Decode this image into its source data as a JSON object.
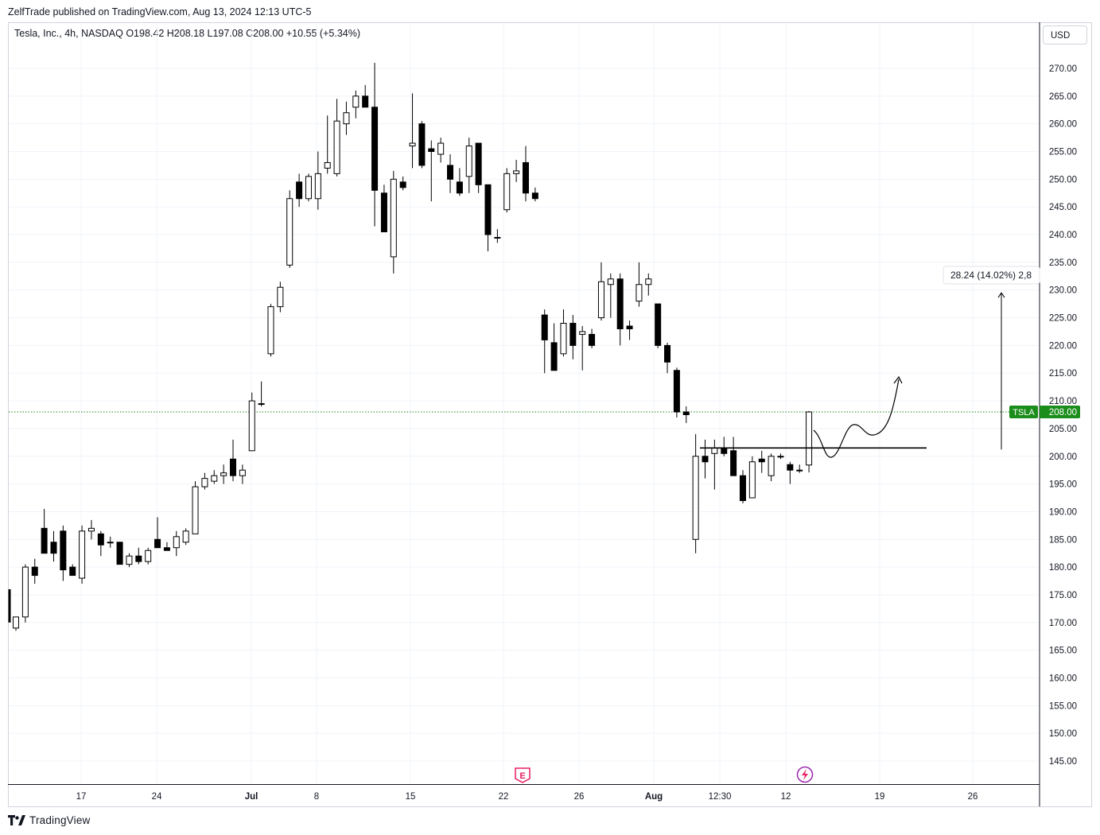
{
  "header": {
    "publish_line": "ZelfTrade published on TradingView.com, Aug 13, 2024 12:13 UTC-5"
  },
  "legend": {
    "symbol_line": "Tesla, Inc., 4h, NASDAQ  O198.42  H208.18  L197.08  C208.00  +10.55 (+5.34%)"
  },
  "price_scale": {
    "currency": "USD"
  },
  "footer": {
    "brand": "TradingView"
  },
  "chart_data": {
    "type": "candlestick",
    "symbol": "TSLA",
    "interval": "4h",
    "exchange": "NASDAQ",
    "ylim": [
      141,
      273
    ],
    "y_ticks": [
      145,
      150,
      155,
      160,
      165,
      170,
      175,
      180,
      185,
      190,
      195,
      200,
      205,
      210,
      215,
      220,
      225,
      230,
      235,
      240,
      245,
      250,
      255,
      260,
      265,
      270
    ],
    "x_ticks": [
      "17",
      "24",
      "Jul",
      "8",
      "15",
      "22",
      "26",
      "Aug",
      "12:30",
      "12",
      "19",
      "26"
    ],
    "grid": true,
    "last_price": {
      "label": "TSLA",
      "value": "208.00",
      "color": "#1b8d1b"
    },
    "candles": [
      {
        "o": 176.0,
        "h": 176.0,
        "l": 170.5,
        "c": 170.5
      },
      {
        "o": 169.0,
        "h": 171.0,
        "l": 168.5,
        "c": 171.0
      },
      {
        "o": 171.0,
        "h": 180.5,
        "l": 170.0,
        "c": 180.0
      },
      {
        "o": 180.0,
        "h": 181.5,
        "l": 177.0,
        "c": 178.5
      },
      {
        "o": 187.0,
        "h": 190.5,
        "l": 183.0,
        "c": 182.5
      },
      {
        "o": 184.5,
        "h": 186.5,
        "l": 181.0,
        "c": 182.5
      },
      {
        "o": 186.5,
        "h": 187.5,
        "l": 177.5,
        "c": 179.5
      },
      {
        "o": 180.0,
        "h": 180.5,
        "l": 178.5,
        "c": 178.5
      },
      {
        "o": 178.0,
        "h": 187.5,
        "l": 177.0,
        "c": 186.5
      },
      {
        "o": 186.5,
        "h": 188.5,
        "l": 185.0,
        "c": 187.0
      },
      {
        "o": 186.0,
        "h": 186.5,
        "l": 182.0,
        "c": 184.0
      },
      {
        "o": 184.5,
        "h": 185.5,
        "l": 183.5,
        "c": 184.5
      },
      {
        "o": 184.5,
        "h": 184.5,
        "l": 180.5,
        "c": 180.5
      },
      {
        "o": 180.5,
        "h": 182.5,
        "l": 180.0,
        "c": 182.0
      },
      {
        "o": 182.0,
        "h": 183.5,
        "l": 180.5,
        "c": 181.0
      },
      {
        "o": 181.0,
        "h": 183.5,
        "l": 180.5,
        "c": 183.0
      },
      {
        "o": 185.0,
        "h": 189.0,
        "l": 183.5,
        "c": 183.5
      },
      {
        "o": 183.5,
        "h": 184.5,
        "l": 183.0,
        "c": 183.0
      },
      {
        "o": 183.5,
        "h": 186.5,
        "l": 182.0,
        "c": 185.5
      },
      {
        "o": 184.5,
        "h": 187.0,
        "l": 184.0,
        "c": 186.5
      },
      {
        "o": 186.0,
        "h": 195.5,
        "l": 186.0,
        "c": 194.5
      },
      {
        "o": 194.5,
        "h": 197.0,
        "l": 194.0,
        "c": 196.0
      },
      {
        "o": 195.5,
        "h": 197.5,
        "l": 195.0,
        "c": 196.5
      },
      {
        "o": 196.5,
        "h": 198.5,
        "l": 195.0,
        "c": 197.0
      },
      {
        "o": 199.5,
        "h": 203.0,
        "l": 195.5,
        "c": 196.5
      },
      {
        "o": 196.5,
        "h": 198.5,
        "l": 195.0,
        "c": 197.5
      },
      {
        "o": 201.0,
        "h": 211.5,
        "l": 201.0,
        "c": 210.0
      },
      {
        "o": 209.5,
        "h": 213.5,
        "l": 209.0,
        "c": 209.5
      },
      {
        "o": 218.5,
        "h": 227.5,
        "l": 218.0,
        "c": 227.0
      },
      {
        "o": 227.0,
        "h": 231.5,
        "l": 226.0,
        "c": 230.5
      },
      {
        "o": 234.5,
        "h": 248.0,
        "l": 234.0,
        "c": 246.5
      },
      {
        "o": 249.5,
        "h": 251.0,
        "l": 245.0,
        "c": 246.5
      },
      {
        "o": 246.5,
        "h": 251.0,
        "l": 246.0,
        "c": 250.5
      },
      {
        "o": 246.5,
        "h": 255.0,
        "l": 244.5,
        "c": 251.0
      },
      {
        "o": 252.0,
        "h": 261.5,
        "l": 251.0,
        "c": 253.0
      },
      {
        "o": 251.0,
        "h": 264.5,
        "l": 250.5,
        "c": 260.5
      },
      {
        "o": 260.0,
        "h": 264.0,
        "l": 258.0,
        "c": 262.0
      },
      {
        "o": 263.0,
        "h": 266.0,
        "l": 261.0,
        "c": 265.0
      },
      {
        "o": 265.0,
        "h": 267.0,
        "l": 263.0,
        "c": 263.0
      },
      {
        "o": 263.0,
        "h": 271.0,
        "l": 241.5,
        "c": 248.0
      },
      {
        "o": 247.5,
        "h": 249.0,
        "l": 241.0,
        "c": 240.5
      },
      {
        "o": 236.0,
        "h": 251.5,
        "l": 233.0,
        "c": 250.0
      },
      {
        "o": 249.5,
        "h": 250.5,
        "l": 248.0,
        "c": 248.5
      },
      {
        "o": 256.0,
        "h": 265.5,
        "l": 252.0,
        "c": 256.5
      },
      {
        "o": 260.0,
        "h": 260.5,
        "l": 252.0,
        "c": 252.5
      },
      {
        "o": 255.5,
        "h": 257.0,
        "l": 246.0,
        "c": 255.0
      },
      {
        "o": 254.5,
        "h": 257.5,
        "l": 253.0,
        "c": 256.5
      },
      {
        "o": 252.5,
        "h": 254.5,
        "l": 247.5,
        "c": 250.0
      },
      {
        "o": 249.5,
        "h": 252.0,
        "l": 247.0,
        "c": 247.5
      },
      {
        "o": 250.5,
        "h": 257.5,
        "l": 247.5,
        "c": 256.0
      },
      {
        "o": 256.5,
        "h": 256.5,
        "l": 247.5,
        "c": 249.0
      },
      {
        "o": 249.0,
        "h": 249.0,
        "l": 237.0,
        "c": 240.0
      },
      {
        "o": 239.5,
        "h": 241.0,
        "l": 238.5,
        "c": 239.5
      },
      {
        "o": 244.5,
        "h": 252.0,
        "l": 244.0,
        "c": 251.0
      },
      {
        "o": 251.0,
        "h": 253.5,
        "l": 249.5,
        "c": 251.5
      },
      {
        "o": 253.0,
        "h": 256.0,
        "l": 246.0,
        "c": 247.5
      },
      {
        "o": 247.5,
        "h": 248.5,
        "l": 246.0,
        "c": 246.5
      },
      {
        "o": 225.5,
        "h": 226.5,
        "l": 215.0,
        "c": 221.0
      },
      {
        "o": 220.5,
        "h": 224.0,
        "l": 216.0,
        "c": 215.5
      },
      {
        "o": 218.5,
        "h": 226.5,
        "l": 218.0,
        "c": 224.0
      },
      {
        "o": 224.0,
        "h": 225.5,
        "l": 217.5,
        "c": 220.0
      },
      {
        "o": 222.0,
        "h": 223.5,
        "l": 215.5,
        "c": 222.5
      },
      {
        "o": 222.0,
        "h": 223.0,
        "l": 219.5,
        "c": 220.0
      },
      {
        "o": 225.0,
        "h": 235.0,
        "l": 224.5,
        "c": 231.5
      },
      {
        "o": 231.0,
        "h": 233.0,
        "l": 225.0,
        "c": 232.0
      },
      {
        "o": 232.0,
        "h": 233.0,
        "l": 220.0,
        "c": 223.0
      },
      {
        "o": 223.5,
        "h": 224.5,
        "l": 221.0,
        "c": 223.0
      },
      {
        "o": 228.0,
        "h": 235.0,
        "l": 227.0,
        "c": 231.0
      },
      {
        "o": 231.0,
        "h": 233.0,
        "l": 229.0,
        "c": 232.0
      },
      {
        "o": 227.5,
        "h": 227.5,
        "l": 219.5,
        "c": 220.0
      },
      {
        "o": 220.0,
        "h": 220.5,
        "l": 215.0,
        "c": 217.0
      },
      {
        "o": 215.5,
        "h": 216.0,
        "l": 207.0,
        "c": 208.0
      },
      {
        "o": 208.0,
        "h": 209.0,
        "l": 206.0,
        "c": 207.5
      },
      {
        "o": 185.0,
        "h": 204.0,
        "l": 182.5,
        "c": 200.0
      },
      {
        "o": 200.0,
        "h": 203.0,
        "l": 196.0,
        "c": 199.0
      },
      {
        "o": 200.5,
        "h": 203.0,
        "l": 194.0,
        "c": 201.5
      },
      {
        "o": 201.5,
        "h": 203.5,
        "l": 200.0,
        "c": 200.5
      },
      {
        "o": 201.0,
        "h": 203.5,
        "l": 197.0,
        "c": 196.5
      },
      {
        "o": 196.5,
        "h": 197.5,
        "l": 191.5,
        "c": 192.0
      },
      {
        "o": 192.5,
        "h": 200.0,
        "l": 192.5,
        "c": 199.0
      },
      {
        "o": 199.5,
        "h": 201.0,
        "l": 197.0,
        "c": 199.0
      },
      {
        "o": 196.5,
        "h": 200.5,
        "l": 195.5,
        "c": 200.0
      },
      {
        "o": 200.0,
        "h": 200.5,
        "l": 199.5,
        "c": 200.0
      },
      {
        "o": 198.5,
        "h": 199.0,
        "l": 195.0,
        "c": 197.5
      },
      {
        "o": 197.5,
        "h": 198.5,
        "l": 197.0,
        "c": 197.5
      },
      {
        "o": 198.42,
        "h": 208.18,
        "l": 197.08,
        "c": 208.0
      }
    ],
    "annotations": {
      "horizontal_line": {
        "price": 201.5
      },
      "measure_label": "28.24 (14.02%) 2,8",
      "measure_from": 201.5,
      "measure_to": 229.5,
      "event_markers": [
        "earnings",
        "dividend"
      ]
    }
  }
}
